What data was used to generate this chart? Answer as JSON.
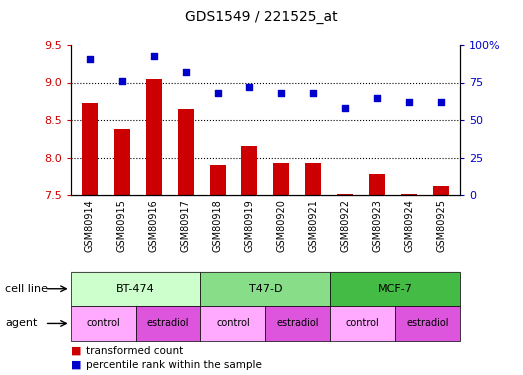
{
  "title": "GDS1549 / 221525_at",
  "samples": [
    "GSM80914",
    "GSM80915",
    "GSM80916",
    "GSM80917",
    "GSM80918",
    "GSM80919",
    "GSM80920",
    "GSM80921",
    "GSM80922",
    "GSM80923",
    "GSM80924",
    "GSM80925"
  ],
  "bar_values": [
    8.72,
    8.38,
    9.05,
    8.65,
    7.9,
    8.15,
    7.93,
    7.93,
    7.52,
    7.78,
    7.52,
    7.62
  ],
  "scatter_values": [
    91,
    76,
    93,
    82,
    68,
    72,
    68,
    68,
    58,
    65,
    62,
    62
  ],
  "bar_color": "#cc0000",
  "scatter_color": "#0000cc",
  "ylim_left": [
    7.5,
    9.5
  ],
  "ylim_right": [
    0,
    100
  ],
  "yticks_left": [
    7.5,
    8.0,
    8.5,
    9.0,
    9.5
  ],
  "yticks_right": [
    0,
    25,
    50,
    75,
    100
  ],
  "ytick_labels_right": [
    "0",
    "25",
    "50",
    "75",
    "100%"
  ],
  "grid_values": [
    8.0,
    8.5,
    9.0
  ],
  "cell_lines": [
    {
      "label": "BT-474",
      "start": 0,
      "end": 4,
      "color": "#ccffcc"
    },
    {
      "label": "T47-D",
      "start": 4,
      "end": 8,
      "color": "#88dd88"
    },
    {
      "label": "MCF-7",
      "start": 8,
      "end": 12,
      "color": "#44bb44"
    }
  ],
  "agents": [
    {
      "label": "control",
      "start": 0,
      "end": 2,
      "color": "#ffaaff"
    },
    {
      "label": "estradiol",
      "start": 2,
      "end": 4,
      "color": "#dd55dd"
    },
    {
      "label": "control",
      "start": 4,
      "end": 6,
      "color": "#ffaaff"
    },
    {
      "label": "estradiol",
      "start": 6,
      "end": 8,
      "color": "#dd55dd"
    },
    {
      "label": "control",
      "start": 8,
      "end": 10,
      "color": "#ffaaff"
    },
    {
      "label": "estradiol",
      "start": 10,
      "end": 12,
      "color": "#dd55dd"
    }
  ],
  "legend_items": [
    {
      "label": "transformed count",
      "color": "#cc0000"
    },
    {
      "label": "percentile rank within the sample",
      "color": "#0000cc"
    }
  ],
  "cell_line_label": "cell line",
  "agent_label": "agent",
  "bg_color": "#ffffff",
  "plot_bg_color": "#ffffff",
  "xtick_bg_color": "#dddddd",
  "tick_label_color_left": "#cc0000",
  "tick_label_color_right": "#0000cc"
}
